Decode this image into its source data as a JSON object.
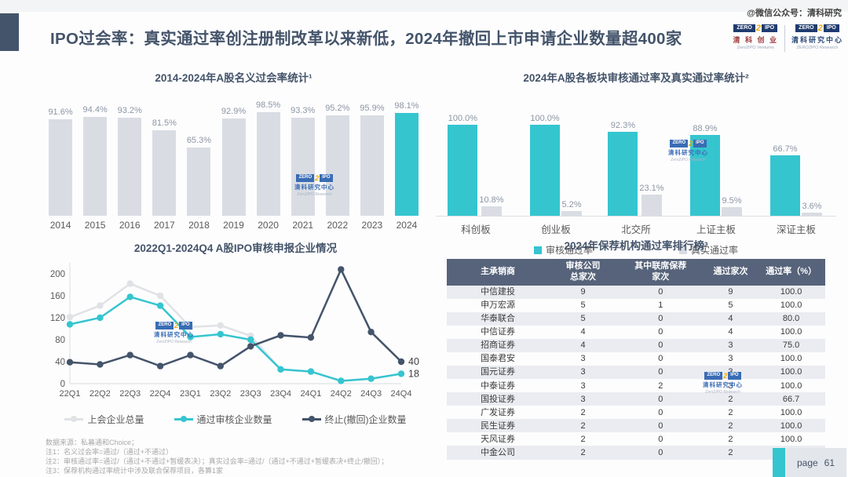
{
  "page_watermark": "@微信公众号：清科研究",
  "header": {
    "title": "IPO过会率：真实通过率创注册制改革以来新低，2024年撤回上市申请企业数量超400家",
    "logos": [
      {
        "zero": "ZERO",
        "two": "2",
        "ipo": "IPO",
        "cn": "清 科 创 业",
        "en": "Zero2IPO Ventures"
      },
      {
        "zero": "ZERO",
        "two": "2",
        "ipo": "IPO",
        "cn": "清科研究中心",
        "en": "ZERO2IPO Research"
      }
    ]
  },
  "zero2ipo_mark": {
    "zero": "ZERO",
    "two": "2",
    "ipo": "IPO",
    "cn": "清科研究中心",
    "en": "Zero2IPO Research"
  },
  "colors": {
    "accent": "#35C5CF",
    "bar_gray": "#D9DDE3",
    "navy": "#44546A",
    "line_light_gray": "#E0E2E6",
    "value_label": "#8C96A3",
    "axis_text": "#595959",
    "table_header_bg": "#56637A",
    "row_alt": "#EAECF1"
  },
  "chart_data": [
    {
      "type": "bar",
      "title": "2014-2024年A股名义过会率统计¹",
      "categories": [
        "2014",
        "2015",
        "2016",
        "2017",
        "2018",
        "2019",
        "2020",
        "2021",
        "2022",
        "2023",
        "2024"
      ],
      "values": [
        91.6,
        94.4,
        93.2,
        81.5,
        65.3,
        92.9,
        98.5,
        93.3,
        95.2,
        95.9,
        98.1
      ],
      "labels": [
        "91.6%",
        "94.4%",
        "93.2%",
        "81.5%",
        "65.3%",
        "92.9%",
        "98.5%",
        "93.3%",
        "95.2%",
        "95.9%",
        "98.1%"
      ],
      "highlight_index": 10,
      "ylim": [
        0,
        100
      ],
      "grid": false
    },
    {
      "type": "bar",
      "title": "2024年A股各板块审核通过率及真实通过率统计²",
      "categories": [
        "科创板",
        "创业板",
        "北交所",
        "上证主板",
        "深证主板"
      ],
      "series": [
        {
          "name": "审核通过率",
          "color": "#35C5CF",
          "values": [
            100.0,
            100.0,
            92.3,
            88.9,
            66.7
          ],
          "labels": [
            "100.0%",
            "100.0%",
            "92.3%",
            "88.9%",
            "66.7%"
          ]
        },
        {
          "name": "真实通过率",
          "color": "#D9DDE3",
          "values": [
            10.8,
            5.2,
            23.1,
            9.5,
            3.6
          ],
          "labels": [
            "10.8%",
            "5.2%",
            "23.1%",
            "9.5%",
            "3.6%"
          ]
        }
      ],
      "ylim": [
        0,
        100
      ],
      "legend_position": "bottom",
      "grid": false
    },
    {
      "type": "line",
      "title": "2022Q1-2024Q4 A股IPO审核申报企业情况",
      "x": [
        "22Q1",
        "22Q2",
        "22Q3",
        "22Q4",
        "23Q1",
        "23Q2",
        "23Q3",
        "23Q4",
        "24Q1",
        "24Q2",
        "24Q3",
        "24Q4"
      ],
      "series": [
        {
          "name": "上会企业总量",
          "color": "#E0E2E6",
          "values": [
            121,
            142,
            182,
            160,
            103,
            106,
            87,
            26,
            22,
            5,
            9,
            18
          ],
          "end_label": null
        },
        {
          "name": "通过审核企业数量",
          "color": "#35C5CF",
          "values": [
            108,
            120,
            158,
            142,
            85,
            90,
            80,
            26,
            22,
            5,
            9,
            18
          ],
          "end_label": "18"
        },
        {
          "name": "终止(撤回)企业数量",
          "color": "#44546A",
          "values": [
            39,
            35,
            52,
            32,
            52,
            32,
            68,
            88,
            84,
            208,
            94,
            40
          ],
          "end_label": "40"
        }
      ],
      "yticks": [
        0,
        40,
        80,
        120,
        160,
        200
      ],
      "ylim": [
        0,
        220
      ],
      "legend_position": "bottom",
      "grid": false
    },
    {
      "type": "table",
      "title": "2024年保荐机构通过率排行榜³",
      "columns": [
        [
          "主承销商"
        ],
        [
          "审核公司",
          "总家次"
        ],
        [
          "其中联席保荐",
          "家次"
        ],
        [
          "通过家次"
        ],
        [
          "通过率（%）"
        ]
      ],
      "rows": [
        [
          "中信建投",
          "9",
          "0",
          "9",
          "100.0"
        ],
        [
          "申万宏源",
          "5",
          "1",
          "5",
          "100.0"
        ],
        [
          "华泰联合",
          "5",
          "0",
          "4",
          "80.0"
        ],
        [
          "中信证券",
          "4",
          "0",
          "4",
          "100.0"
        ],
        [
          "招商证券",
          "4",
          "0",
          "3",
          "75.0"
        ],
        [
          "国泰君安",
          "3",
          "0",
          "3",
          "100.0"
        ],
        [
          "国元证券",
          "3",
          "0",
          "3",
          "100.0"
        ],
        [
          "中泰证券",
          "3",
          "2",
          "3",
          "100.0"
        ],
        [
          "国投证券",
          "3",
          "0",
          "2",
          "66.7"
        ],
        [
          "广发证券",
          "2",
          "0",
          "2",
          "100.0"
        ],
        [
          "民生证券",
          "2",
          "0",
          "2",
          "100.0"
        ],
        [
          "天风证券",
          "2",
          "0",
          "2",
          "100.0"
        ],
        [
          "中金公司",
          "2",
          "0",
          "2",
          "100.0"
        ]
      ]
    }
  ],
  "footnotes": [
    "数据来源：私募通和Choice；",
    "注1：名义过会率=通过/（通过+不通过）",
    "注2：审核通过率=通过/（通过+不通过+暂缓表决）；真实过会率=通过/（通过+不通过+暂缓表决+终止/撤回）；",
    "注3：保荐机构通过率统计中涉及联合保荐项目，各算1家"
  ],
  "page_badge": {
    "label": "page",
    "number": "61"
  }
}
